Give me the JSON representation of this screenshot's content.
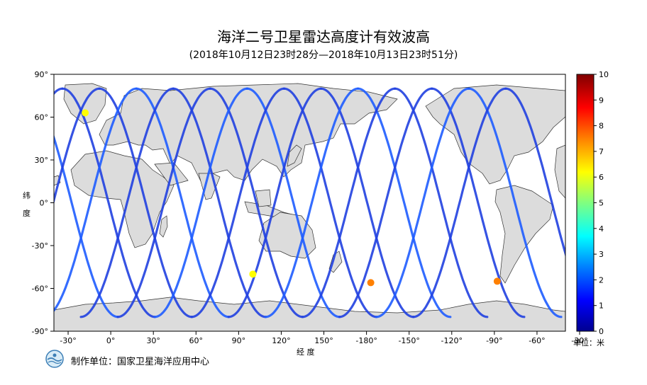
{
  "title": "海洋二号卫星雷达高度计有效波高",
  "subtitle": "(2018年10月12日23时28分—2018年10月13日23时51分)",
  "axes": {
    "y_label_chars": [
      "纬",
      "度"
    ],
    "x_label": "经 度",
    "lat_ticks": [
      "90°",
      "60°",
      "30°",
      "0°",
      "-30°",
      "-60°",
      "-90°"
    ],
    "lon_ticks": [
      "-30°",
      "0°",
      "30°",
      "60°",
      "90°",
      "120°",
      "150°",
      "-180°",
      "-150°",
      "-120°",
      "-90°",
      "-60°",
      "-30°"
    ]
  },
  "colorbar": {
    "ticks": [
      "10",
      "9",
      "8",
      "7",
      "6",
      "5",
      "4",
      "3",
      "2",
      "1",
      "0"
    ],
    "unit_label": "单位：米",
    "colors": [
      "#00008f",
      "#0000ff",
      "#0080ff",
      "#00ffff",
      "#80ff80",
      "#ffff00",
      "#ff8000",
      "#ff0000",
      "#800000"
    ]
  },
  "footer": {
    "producer": "制作单位：国家卫星海洋应用中心"
  },
  "chart_data": {
    "type": "map",
    "x_range_lon": [
      -40,
      320
    ],
    "y_range_lat": [
      -90,
      90
    ],
    "colorbar_range": [
      0,
      10
    ],
    "hotspots": [
      {
        "lon": 183,
        "lat": -56,
        "value": 8
      },
      {
        "lon": 272,
        "lat": -55,
        "value": 8
      },
      {
        "lon": -18,
        "lat": 63,
        "value": 6
      },
      {
        "lon": 100,
        "lat": -50,
        "value": 6
      }
    ]
  }
}
